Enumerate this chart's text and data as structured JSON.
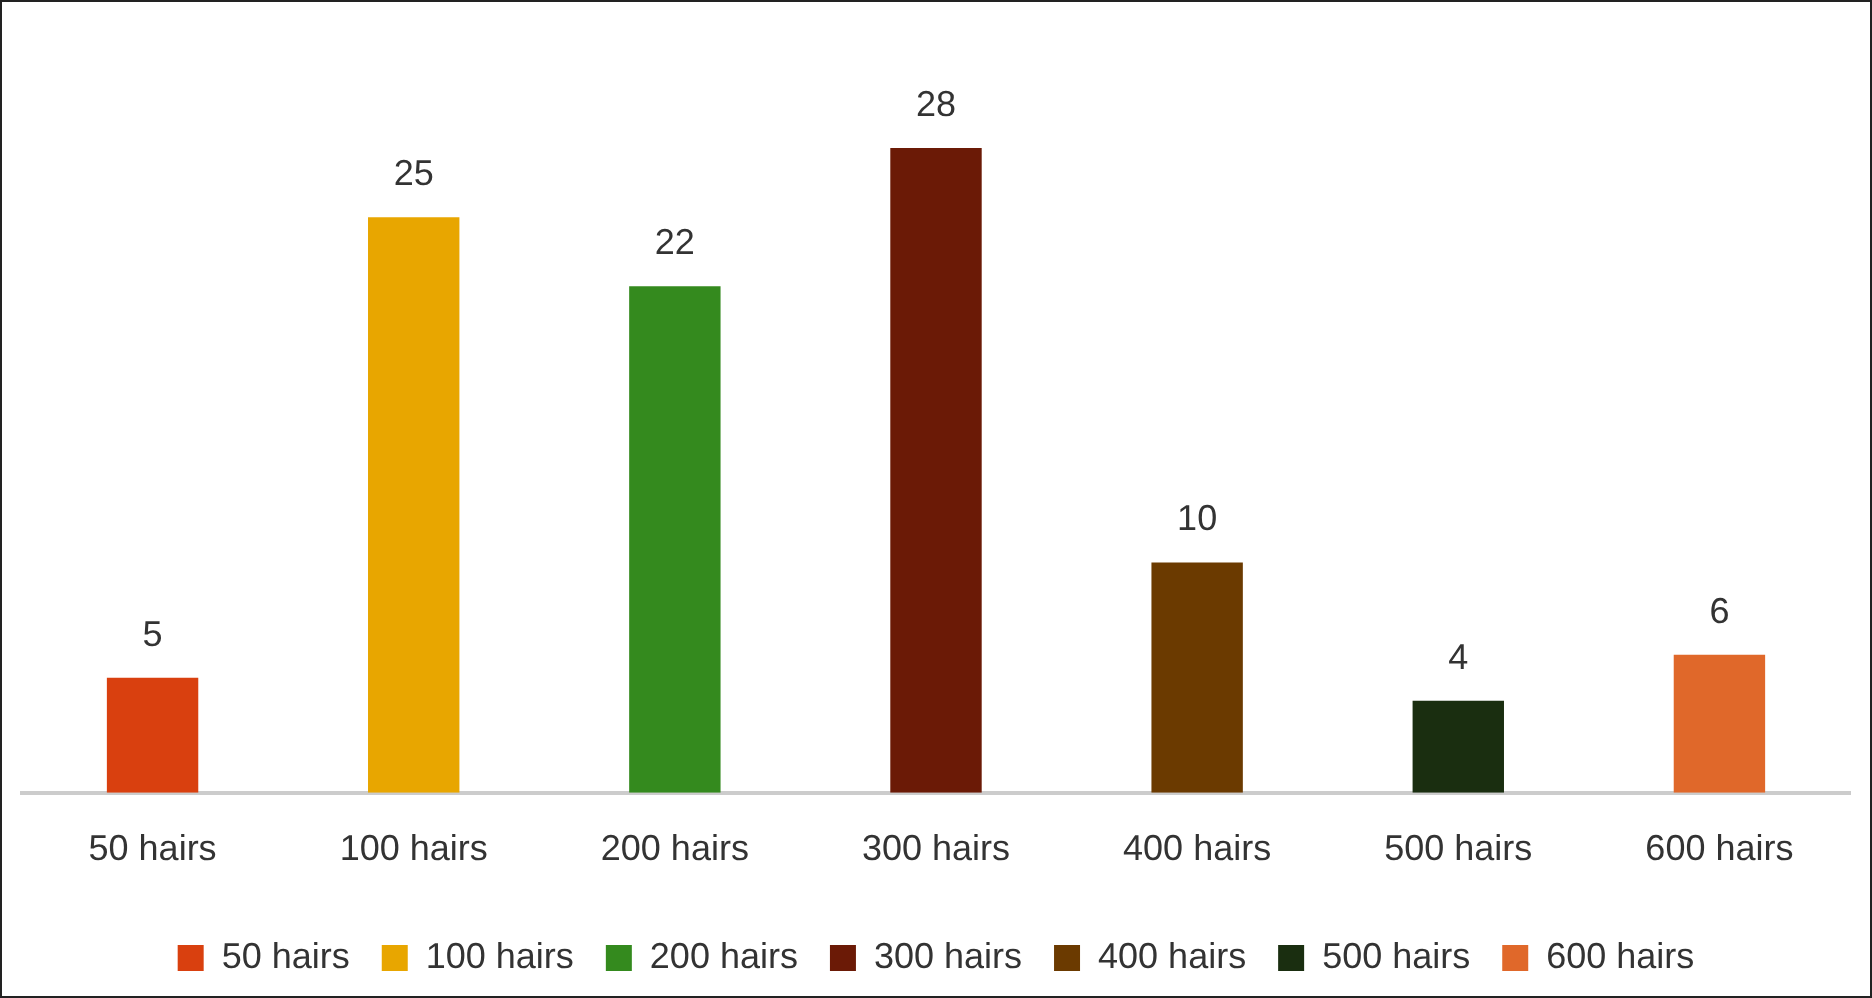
{
  "chart_data": {
    "type": "bar",
    "categories": [
      "50 hairs",
      "100 hairs",
      "200 hairs",
      "300 hairs",
      "400 hairs",
      "500 hairs",
      "600 hairs"
    ],
    "series": [
      {
        "name": "50 hairs",
        "color": "#d9400f",
        "values": [
          5,
          null,
          null,
          null,
          null,
          null,
          null
        ]
      },
      {
        "name": "100 hairs",
        "color": "#e8a600",
        "values": [
          null,
          25,
          null,
          null,
          null,
          null,
          null
        ]
      },
      {
        "name": "200 hairs",
        "color": "#348a1e",
        "values": [
          null,
          null,
          22,
          null,
          null,
          null,
          null
        ]
      },
      {
        "name": "300 hairs",
        "color": "#6b1a06",
        "values": [
          null,
          null,
          null,
          28,
          null,
          null,
          null
        ]
      },
      {
        "name": "400 hairs",
        "color": "#6b3a00",
        "values": [
          null,
          null,
          null,
          null,
          10,
          null,
          null
        ]
      },
      {
        "name": "500 hairs",
        "color": "#1a2e10",
        "values": [
          null,
          null,
          null,
          null,
          null,
          4,
          null
        ]
      },
      {
        "name": "600 hairs",
        "color": "#e0682a",
        "values": [
          null,
          null,
          null,
          null,
          null,
          null,
          6
        ]
      }
    ],
    "data_labels": true,
    "legend": "bottom",
    "grid": false,
    "tick_labels": "x"
  }
}
